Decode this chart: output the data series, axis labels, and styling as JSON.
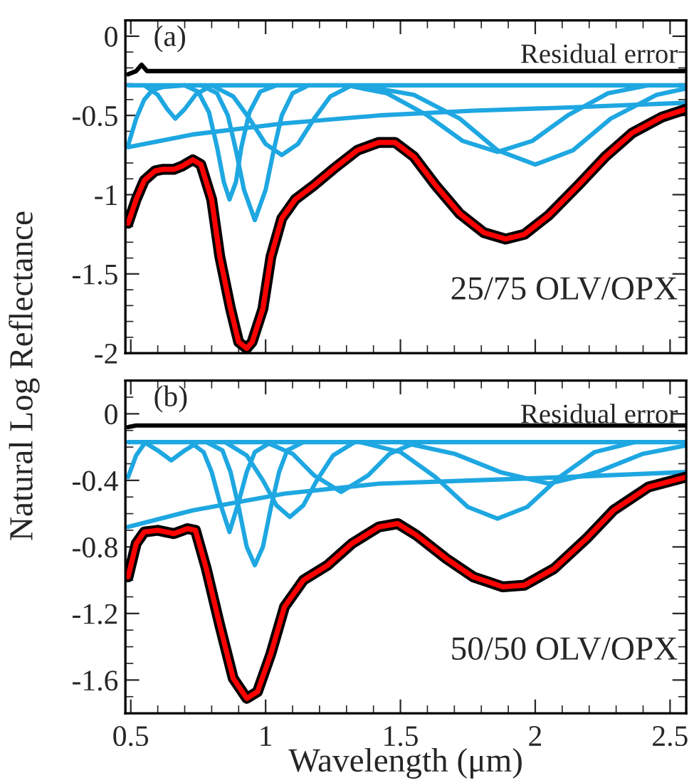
{
  "chart_data": [
    {
      "type": "line",
      "ylabel": "Natural Log Reflectance",
      "annotations": [
        "(a)",
        "Residual error",
        "25/75 OLV/OPX"
      ],
      "xlim": [
        0.48,
        2.56
      ],
      "xticks": [
        0.5,
        1,
        1.5,
        2,
        2.5
      ],
      "ylim": [
        -2.0,
        0.1
      ],
      "yticks": [
        0,
        -0.5,
        -1,
        -1.5,
        -2
      ],
      "tick_labels": "y",
      "grid": false,
      "legend": false,
      "series": [
        {
          "color": "#000000",
          "x": [
            0.49,
            0.52,
            0.54,
            0.56,
            0.6,
            1.0,
            1.5,
            2.0,
            2.56
          ],
          "values": [
            -0.24,
            -0.22,
            -0.18,
            -0.22,
            -0.22,
            -0.22,
            -0.22,
            -0.22,
            -0.22
          ]
        },
        {
          "color": "#1ea7e1",
          "x": [
            0.49,
            2.56
          ],
          "values": [
            -0.31,
            -0.31
          ]
        },
        {
          "color": "#1ea7e1",
          "x": [
            0.49,
            0.73,
            1.07,
            1.42,
            1.77,
            2.12,
            2.56
          ],
          "values": [
            -0.7,
            -0.62,
            -0.55,
            -0.5,
            -0.47,
            -0.45,
            -0.42
          ]
        },
        {
          "color": "#1ea7e1",
          "x": [
            0.49,
            0.52,
            0.55,
            0.58,
            0.62,
            0.7
          ],
          "values": [
            -0.69,
            -0.52,
            -0.4,
            -0.34,
            -0.32,
            -0.31
          ]
        },
        {
          "color": "#1ea7e1",
          "x": [
            0.55,
            0.6,
            0.635,
            0.665,
            0.7,
            0.74,
            0.8
          ],
          "values": [
            -0.31,
            -0.37,
            -0.46,
            -0.52,
            -0.46,
            -0.37,
            -0.31
          ]
        },
        {
          "color": "#1ea7e1",
          "x": [
            0.7,
            0.75,
            0.79,
            0.82,
            0.845,
            0.866,
            0.89,
            0.91,
            0.94,
            0.98,
            1.04
          ],
          "values": [
            -0.31,
            -0.35,
            -0.48,
            -0.7,
            -0.92,
            -1.03,
            -0.92,
            -0.7,
            -0.48,
            -0.35,
            -0.31
          ]
        },
        {
          "color": "#1ea7e1",
          "x": [
            0.76,
            0.82,
            0.86,
            0.89,
            0.92,
            0.96,
            1.0,
            1.03,
            1.06,
            1.1,
            1.16
          ],
          "values": [
            -0.31,
            -0.36,
            -0.5,
            -0.72,
            -0.97,
            -1.16,
            -0.97,
            -0.72,
            -0.5,
            -0.36,
            -0.31
          ]
        },
        {
          "color": "#1ea7e1",
          "x": [
            0.8,
            0.88,
            0.94,
            1.0,
            1.06,
            1.12,
            1.18,
            1.24,
            1.32
          ],
          "values": [
            -0.31,
            -0.38,
            -0.52,
            -0.68,
            -0.75,
            -0.68,
            -0.52,
            -0.38,
            -0.31
          ]
        },
        {
          "color": "#1ea7e1",
          "x": [
            1.3,
            1.45,
            1.6,
            1.73,
            1.86,
            1.99,
            2.12,
            2.27,
            2.42
          ],
          "values": [
            -0.31,
            -0.36,
            -0.5,
            -0.66,
            -0.73,
            -0.66,
            -0.5,
            -0.36,
            -0.31
          ]
        },
        {
          "color": "#1ea7e1",
          "x": [
            1.35,
            1.55,
            1.72,
            1.86,
            2.0,
            2.14,
            2.28,
            2.45,
            2.56
          ],
          "values": [
            -0.31,
            -0.37,
            -0.52,
            -0.72,
            -0.81,
            -0.72,
            -0.52,
            -0.37,
            -0.33
          ]
        },
        {
          "color": "#000000",
          "x": [
            0.49,
            0.52,
            0.55,
            0.59,
            0.62,
            0.66,
            0.69,
            0.73,
            0.76,
            0.8,
            0.83,
            0.87,
            0.9,
            0.93,
            0.95,
            0.99,
            1.02,
            1.06,
            1.11,
            1.18,
            1.25,
            1.34,
            1.42,
            1.48,
            1.55,
            1.63,
            1.72,
            1.81,
            1.89,
            1.96,
            2.05,
            2.16,
            2.26,
            2.36,
            2.47,
            2.56
          ],
          "values": [
            -1.18,
            -1.03,
            -0.91,
            -0.85,
            -0.84,
            -0.84,
            -0.82,
            -0.78,
            -0.81,
            -1.03,
            -1.39,
            -1.72,
            -1.93,
            -1.97,
            -1.93,
            -1.72,
            -1.39,
            -1.15,
            -1.03,
            -0.94,
            -0.84,
            -0.72,
            -0.67,
            -0.67,
            -0.76,
            -0.94,
            -1.12,
            -1.24,
            -1.28,
            -1.25,
            -1.13,
            -0.94,
            -0.76,
            -0.61,
            -0.51,
            -0.46
          ]
        },
        {
          "color": "#ff0000",
          "x": [
            0.49,
            0.52,
            0.55,
            0.59,
            0.62,
            0.66,
            0.69,
            0.73,
            0.76,
            0.8,
            0.83,
            0.87,
            0.9,
            0.93,
            0.95,
            0.99,
            1.02,
            1.06,
            1.11,
            1.18,
            1.25,
            1.34,
            1.42,
            1.48,
            1.55,
            1.63,
            1.72,
            1.81,
            1.89,
            1.96,
            2.05,
            2.16,
            2.26,
            2.36,
            2.47,
            2.56
          ],
          "values": [
            -1.18,
            -1.03,
            -0.91,
            -0.85,
            -0.84,
            -0.84,
            -0.82,
            -0.78,
            -0.81,
            -1.03,
            -1.39,
            -1.72,
            -1.93,
            -1.97,
            -1.93,
            -1.72,
            -1.39,
            -1.15,
            -1.03,
            -0.94,
            -0.84,
            -0.72,
            -0.67,
            -0.67,
            -0.76,
            -0.94,
            -1.12,
            -1.24,
            -1.28,
            -1.25,
            -1.13,
            -0.94,
            -0.76,
            -0.61,
            -0.51,
            -0.46
          ]
        }
      ]
    },
    {
      "type": "line",
      "xlabel": "Wavelength (μm)",
      "annotations": [
        "(b)",
        "Residual error",
        "50/50 OLV/OPX"
      ],
      "xlim": [
        0.48,
        2.56
      ],
      "xticks": [
        0.5,
        1,
        1.5,
        2,
        2.5
      ],
      "ylim": [
        -1.8,
        0.2
      ],
      "yticks": [
        0,
        -0.4,
        -0.8,
        -1.2,
        -1.6
      ],
      "grid": false,
      "legend": false,
      "series": [
        {
          "color": "#000000",
          "x": [
            0.49,
            0.52,
            0.6,
            1.0,
            1.5,
            2.0,
            2.56
          ],
          "values": [
            -0.08,
            -0.07,
            -0.07,
            -0.07,
            -0.07,
            -0.07,
            -0.07
          ]
        },
        {
          "color": "#1ea7e1",
          "x": [
            0.49,
            2.56
          ],
          "values": [
            -0.17,
            -0.17
          ]
        },
        {
          "color": "#1ea7e1",
          "x": [
            0.49,
            0.73,
            1.07,
            1.42,
            1.77,
            2.12,
            2.56
          ],
          "values": [
            -0.68,
            -0.58,
            -0.48,
            -0.42,
            -0.4,
            -0.38,
            -0.35
          ]
        },
        {
          "color": "#1ea7e1",
          "x": [
            0.49,
            0.52,
            0.55,
            0.58
          ],
          "values": [
            -0.38,
            -0.25,
            -0.18,
            -0.17
          ]
        },
        {
          "color": "#1ea7e1",
          "x": [
            0.55,
            0.6,
            0.65,
            0.7,
            0.75
          ],
          "values": [
            -0.17,
            -0.22,
            -0.28,
            -0.22,
            -0.17
          ]
        },
        {
          "color": "#1ea7e1",
          "x": [
            0.72,
            0.77,
            0.8,
            0.83,
            0.866,
            0.9,
            0.93,
            0.96,
            1.02
          ],
          "values": [
            -0.17,
            -0.23,
            -0.35,
            -0.53,
            -0.71,
            -0.53,
            -0.35,
            -0.23,
            -0.17
          ]
        },
        {
          "color": "#1ea7e1",
          "x": [
            0.78,
            0.84,
            0.87,
            0.9,
            0.93,
            0.96,
            0.99,
            1.02,
            1.05,
            1.08,
            1.14
          ],
          "values": [
            -0.17,
            -0.22,
            -0.35,
            -0.56,
            -0.8,
            -0.91,
            -0.8,
            -0.56,
            -0.35,
            -0.22,
            -0.17
          ]
        },
        {
          "color": "#1ea7e1",
          "x": [
            0.85,
            0.93,
            0.99,
            1.04,
            1.09,
            1.14,
            1.19,
            1.25,
            1.33
          ],
          "values": [
            -0.17,
            -0.25,
            -0.4,
            -0.55,
            -0.62,
            -0.55,
            -0.4,
            -0.25,
            -0.17
          ]
        },
        {
          "color": "#1ea7e1",
          "x": [
            1.0,
            1.1,
            1.18,
            1.28,
            1.38,
            1.46,
            1.56
          ],
          "values": [
            -0.17,
            -0.24,
            -0.37,
            -0.47,
            -0.37,
            -0.24,
            -0.17
          ]
        },
        {
          "color": "#1ea7e1",
          "x": [
            1.35,
            1.5,
            1.63,
            1.75,
            1.86,
            1.97,
            2.09,
            2.22,
            2.37
          ],
          "values": [
            -0.17,
            -0.23,
            -0.38,
            -0.56,
            -0.63,
            -0.56,
            -0.38,
            -0.23,
            -0.17
          ]
        },
        {
          "color": "#1ea7e1",
          "x": [
            1.5,
            1.7,
            1.87,
            2.05,
            2.23,
            2.4,
            2.56
          ],
          "values": [
            -0.17,
            -0.24,
            -0.35,
            -0.42,
            -0.35,
            -0.24,
            -0.19
          ]
        },
        {
          "color": "#000000",
          "x": [
            0.49,
            0.52,
            0.55,
            0.6,
            0.66,
            0.71,
            0.74,
            0.78,
            0.83,
            0.88,
            0.93,
            0.97,
            1.02,
            1.07,
            1.14,
            1.23,
            1.32,
            1.42,
            1.49,
            1.56,
            1.67,
            1.77,
            1.88,
            1.96,
            2.07,
            2.19,
            2.29,
            2.42,
            2.56
          ],
          "values": [
            -0.98,
            -0.78,
            -0.71,
            -0.7,
            -0.72,
            -0.69,
            -0.7,
            -0.93,
            -1.27,
            -1.59,
            -1.71,
            -1.67,
            -1.44,
            -1.16,
            -1.0,
            -0.91,
            -0.78,
            -0.68,
            -0.66,
            -0.73,
            -0.87,
            -0.98,
            -1.04,
            -1.03,
            -0.93,
            -0.75,
            -0.58,
            -0.44,
            -0.38
          ]
        },
        {
          "color": "#ff0000",
          "x": [
            0.49,
            0.52,
            0.55,
            0.6,
            0.66,
            0.71,
            0.74,
            0.78,
            0.83,
            0.88,
            0.93,
            0.97,
            1.02,
            1.07,
            1.14,
            1.23,
            1.32,
            1.42,
            1.49,
            1.56,
            1.67,
            1.77,
            1.88,
            1.96,
            2.07,
            2.19,
            2.29,
            2.42,
            2.56
          ],
          "values": [
            -0.98,
            -0.78,
            -0.71,
            -0.7,
            -0.72,
            -0.69,
            -0.7,
            -0.93,
            -1.27,
            -1.59,
            -1.71,
            -1.67,
            -1.44,
            -1.16,
            -1.0,
            -0.91,
            -0.78,
            -0.68,
            -0.66,
            -0.73,
            -0.87,
            -0.98,
            -1.04,
            -1.03,
            -0.93,
            -0.75,
            -0.58,
            -0.44,
            -0.38
          ]
        }
      ]
    }
  ]
}
